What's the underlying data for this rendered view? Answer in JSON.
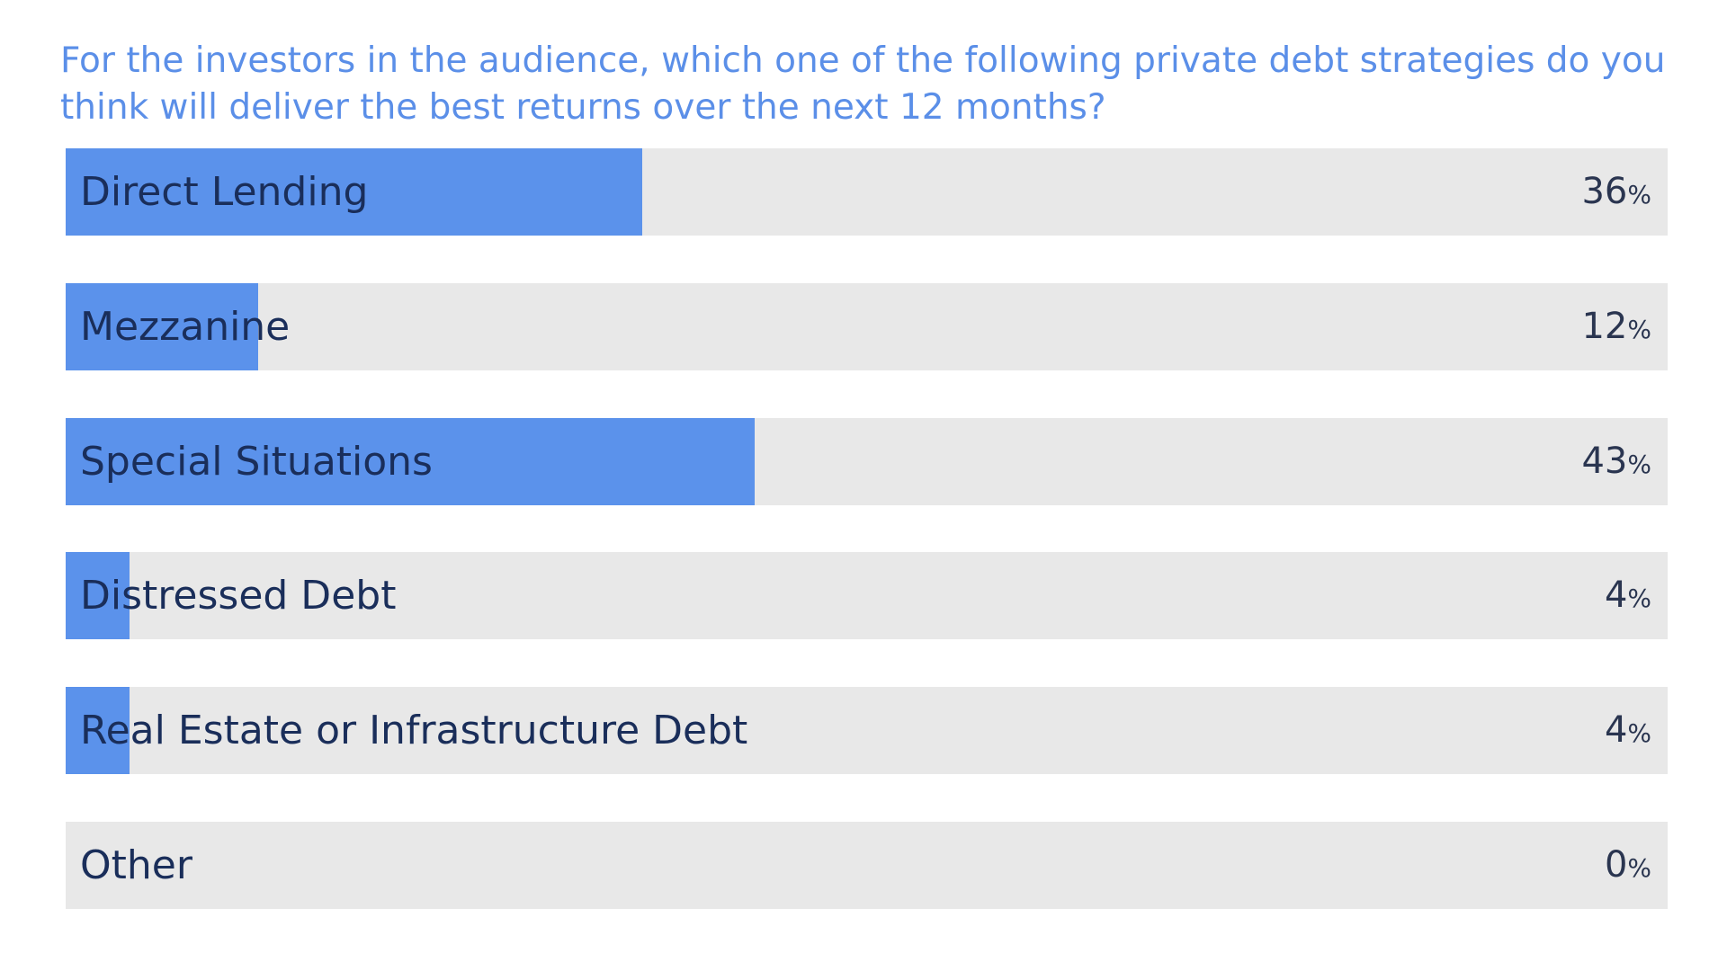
{
  "chart_data": {
    "type": "bar",
    "orientation": "horizontal",
    "title": "For the investors in the audience, which one of the following private debt strategies do you think will deliver the best returns over the next 12 months?",
    "categories": [
      "Direct Lending",
      "Mezzanine",
      "Special Situations",
      "Distressed Debt",
      "Real Estate or Infrastructure Debt",
      "Other"
    ],
    "values": [
      36,
      12,
      43,
      4,
      4,
      0
    ],
    "value_labels": [
      "36",
      "12",
      "43",
      "4",
      "4",
      "0"
    ],
    "unit": "%",
    "xlim": [
      0,
      100
    ],
    "grid": false,
    "legend": "none"
  },
  "colors": {
    "bar_fill": "#5b92eb",
    "track": "#e8e8e8",
    "title": "#5b8fe8",
    "label": "#1a2e5a"
  }
}
